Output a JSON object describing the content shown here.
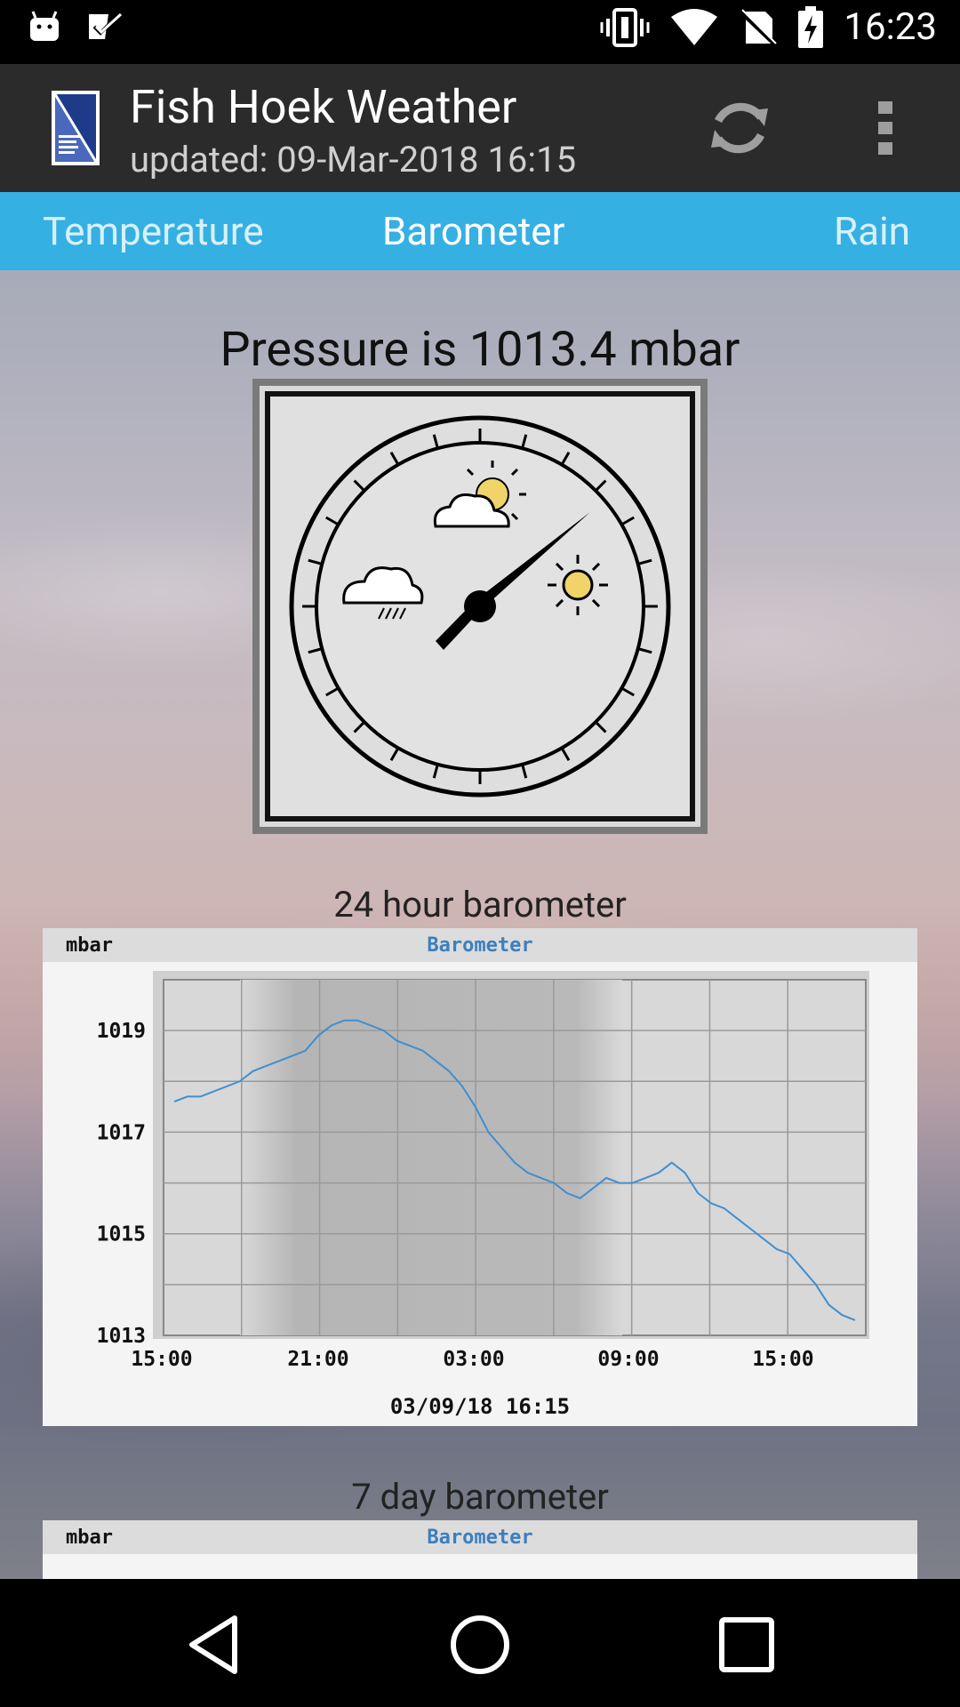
{
  "status_bar": {
    "time": "16:23",
    "icons_left": [
      "android-icon",
      "checklist-icon"
    ],
    "icons_right": [
      "vibrate-icon",
      "wifi-icon",
      "no-sim-icon",
      "battery-charging-icon"
    ]
  },
  "app_bar": {
    "title": "Fish Hoek Weather",
    "subtitle": "updated: 09-Mar-2018 16:15",
    "actions": [
      "refresh-icon",
      "overflow-menu-icon"
    ]
  },
  "tabs": [
    {
      "label": "Temperature",
      "active": false
    },
    {
      "label": "Barometer",
      "active": true
    },
    {
      "label": "Rain",
      "active": false
    }
  ],
  "main": {
    "pressure_text": "Pressure is 1013.4 mbar",
    "gauge": {
      "icons": [
        "rain-cloud-icon",
        "partly-cloudy-icon",
        "sun-icon"
      ],
      "needle_direction": "upper-right"
    },
    "chart_24h_caption": "24 hour barometer",
    "chart_7d_caption": "7 day barometer"
  },
  "chart_data": [
    {
      "type": "line",
      "title": "Barometer",
      "ylabel": "mbar",
      "footer": "03/09/18 16:15",
      "ylim": [
        1013,
        1020
      ],
      "yticks": [
        "1019",
        "1017",
        "1015",
        "1013"
      ],
      "xticks": [
        "15:00",
        "21:00",
        "03:00",
        "09:00",
        "15:00"
      ],
      "grid": true,
      "x": [
        0,
        1,
        2,
        3,
        4,
        5,
        6,
        7,
        8,
        9,
        10,
        11,
        12,
        13,
        14,
        15,
        16,
        17,
        18,
        19,
        20,
        21,
        22,
        23,
        24,
        25,
        26,
        27,
        28,
        29,
        30,
        31,
        32,
        33,
        34,
        35,
        36,
        37,
        38,
        39,
        40,
        41,
        42,
        43,
        44,
        45,
        46,
        47,
        48,
        49,
        50,
        51,
        52
      ],
      "values": [
        1017.6,
        1017.7,
        1017.7,
        1017.8,
        1017.9,
        1018.0,
        1018.2,
        1018.3,
        1018.4,
        1018.5,
        1018.6,
        1018.9,
        1019.1,
        1019.2,
        1019.2,
        1019.1,
        1019.0,
        1018.8,
        1018.7,
        1018.6,
        1018.4,
        1018.2,
        1017.9,
        1017.5,
        1017.0,
        1016.7,
        1016.4,
        1016.2,
        1016.1,
        1016.0,
        1015.8,
        1015.7,
        1015.9,
        1016.1,
        1016.0,
        1016.0,
        1016.1,
        1016.2,
        1016.4,
        1016.2,
        1015.8,
        1015.6,
        1015.5,
        1015.3,
        1015.1,
        1014.9,
        1014.7,
        1014.6,
        1014.3,
        1014.0,
        1013.6,
        1013.4,
        1013.3
      ],
      "shading": "night-time bands"
    },
    {
      "type": "line",
      "title": "Barometer",
      "ylabel": "mbar",
      "partial": true
    }
  ]
}
